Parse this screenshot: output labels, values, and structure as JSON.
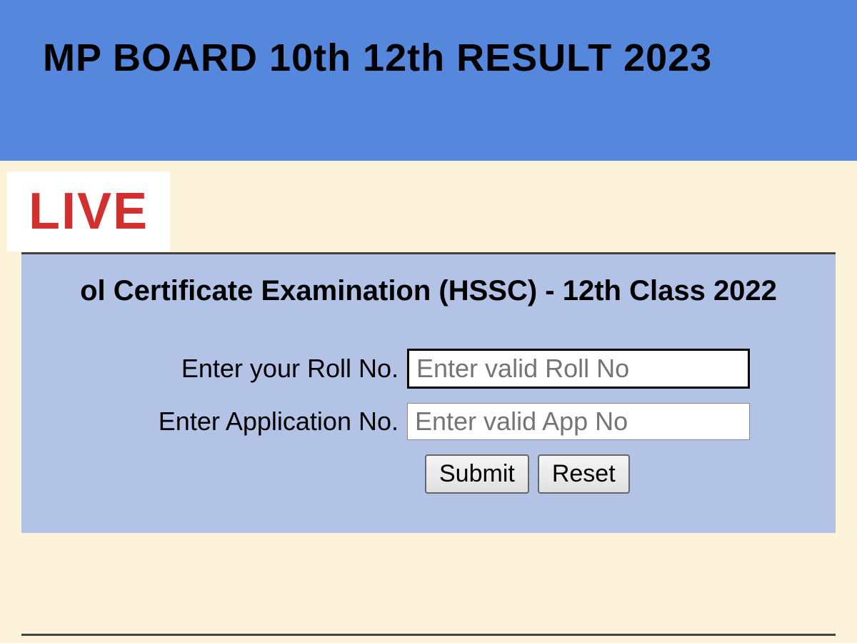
{
  "header": {
    "title": "MP BOARD 10th 12th RESULT 2023",
    "background_color": "#5588dd",
    "title_color": "#000000",
    "title_fontsize": 54
  },
  "live_badge": {
    "text": "LIVE",
    "text_color": "#d32f2f",
    "background_color": "#ffffff",
    "fontsize": 72
  },
  "body": {
    "background_color": "#fdf3db"
  },
  "form_panel": {
    "background_color": "#b3c3e6",
    "border_color": "#424242",
    "title": "ol Certificate Examination (HSSC) - 12th Class 2022",
    "title_fontsize": 40,
    "fields": [
      {
        "label": "Enter your Roll No.",
        "placeholder": "Enter valid Roll No",
        "focused": true
      },
      {
        "label": "Enter Application No.",
        "placeholder": "Enter valid App No",
        "focused": false
      }
    ],
    "buttons": {
      "submit": "Submit",
      "reset": "Reset"
    }
  }
}
